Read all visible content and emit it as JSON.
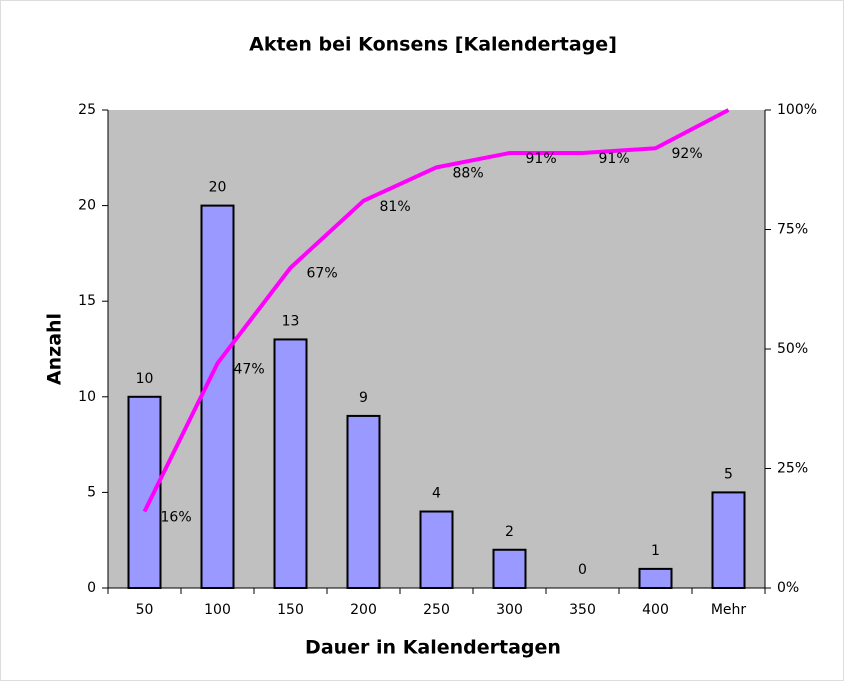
{
  "chart_data": {
    "type": "bar",
    "title": "Akten bei Konsens [Kalendertage]",
    "x_label": "Dauer in Kalendertagen",
    "y_label": "Anzahl",
    "categories": [
      "50",
      "100",
      "150",
      "200",
      "250",
      "300",
      "350",
      "400",
      "Mehr"
    ],
    "series": [
      {
        "type": "bar",
        "color": "#9999ff",
        "values": [
          10,
          20,
          13,
          9,
          4,
          2,
          0,
          1,
          5
        ]
      },
      {
        "type": "line",
        "axis": "y2",
        "color": "#ff00ff",
        "values": [
          16,
          47,
          67,
          81,
          88,
          91,
          91,
          92,
          100
        ],
        "value_labels": [
          "16%",
          "47%",
          "67%",
          "81%",
          "88%",
          "91%",
          "91%",
          "92%",
          null
        ]
      }
    ],
    "ylim": [
      0,
      25
    ],
    "yticks": [
      0,
      5,
      10,
      15,
      20,
      25
    ],
    "y2lim": [
      0,
      100
    ],
    "y2ticks": [
      {
        "value": 0,
        "label": "0%"
      },
      {
        "value": 25,
        "label": "25%"
      },
      {
        "value": 50,
        "label": "50%"
      },
      {
        "value": 75,
        "label": "75%"
      },
      {
        "value": 100,
        "label": "100%"
      }
    ],
    "grid": false,
    "plot_background": "#c0c0c0"
  }
}
